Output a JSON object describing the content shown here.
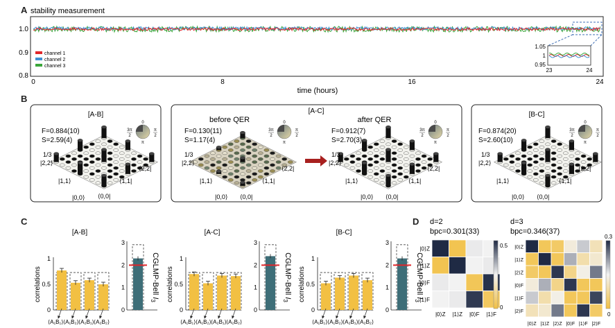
{
  "figure": {
    "panel_a": {
      "letter": "A",
      "title": "stability measurement",
      "ylabel_ticks": [
        "1.0",
        "0.9",
        "0.8"
      ],
      "xticks": [
        "0",
        "8",
        "16",
        "24"
      ],
      "xlabel": "time (hours)",
      "legend": [
        "channel 1",
        "channel 2",
        "channel 3"
      ],
      "inset": {
        "yticks": [
          "1.05",
          "1",
          "0.95"
        ],
        "xticks": [
          "23",
          "24"
        ]
      },
      "colors": {
        "channel1": "#e0262a",
        "channel2": "#3f8fd2",
        "channel3": "#3aa63a"
      }
    },
    "panel_b": {
      "letter": "B",
      "ab": {
        "title": "[A-B]",
        "fidelity": "F=0.884(10)",
        "s_value": "S=2.59(4)",
        "axis": {
          "ytop": "1/3",
          "left22": "|2,2⟩",
          "left11": "|1,1⟩",
          "left00": "|0,0⟩",
          "bottom00": "⟨0,0|",
          "bottom11": "⟨1,1|",
          "bottom22": "⟨2,2|"
        }
      },
      "ac": {
        "title": "[A-C]",
        "before_title": "before QER",
        "after_title": "after QER",
        "before_fidelity": "F=0.130(11)",
        "before_s": "S=1.17(4)",
        "after_fidelity": "F=0.912(7)",
        "after_s": "S=2.70(3)",
        "before_axis": {
          "ytop": "1/3",
          "left22": "|2,2⟩",
          "left11": "|1,1⟩",
          "left00": "|0,0⟩",
          "bottom00": "⟨0,0|",
          "bottom11": "⟨1,1|",
          "bottom22": "⟨2,2|"
        },
        "after_axis": {
          "ytop": "1/3",
          "left22": "|2,2⟩",
          "left11": "|1,1⟩",
          "left00": "|0,0⟩",
          "bottom00": "⟨0,0|",
          "bottom11": "⟨1,1|",
          "bottom22": "⟨2,2|"
        }
      },
      "bc": {
        "title": "[B-C]",
        "fidelity": "F=0.874(20)",
        "s_value": "S=2.60(10)",
        "axis": {
          "ytop": "1/3",
          "left22": "|2,2⟩",
          "left11": "|1,1⟩",
          "left00": "|0,0⟩",
          "bottom00": "⟨0,0|",
          "bottom11": "⟨1,1|",
          "bottom22": "⟨2,2|"
        }
      },
      "phase_wheel": {
        "top": "0",
        "left_num": "3",
        "left_pi": "π",
        "left_den": "2",
        "right_num": "π",
        "right_den": "2",
        "bottom": "π"
      }
    },
    "panel_c": {
      "letter": "C",
      "ylabel": "correlations",
      "bell_label": "CGLMP-Bell",
      "bell_symbol": "I",
      "bell_sub": "3",
      "yticks_left": [
        "1",
        "0.5",
        "0"
      ],
      "yticks_right": [
        "3",
        "2",
        "1",
        "0"
      ],
      "xlabels": [
        "⟨A₁B₁⟩",
        "⟨A₁B₂⟩",
        "⟨A₂B₁⟩",
        "⟨A₂B₂⟩"
      ],
      "groups": [
        {
          "title": "[A-B]",
          "values": [
            0.77,
            0.53,
            0.58,
            0.5
          ],
          "ideal": 0.73,
          "bell": 2.3
        },
        {
          "title": "[A-C]",
          "values": [
            0.7,
            0.52,
            0.67,
            0.66
          ],
          "ideal": 0.73,
          "bell": 2.4
        },
        {
          "title": "[B-C]",
          "values": [
            0.52,
            0.63,
            0.67,
            0.58
          ],
          "ideal": 0.73,
          "bell": 2.3
        }
      ],
      "bell_ideal": 2.91,
      "bell_bound": 2.0,
      "colors": {
        "bar": "#f2c043",
        "bell": "#3e6e78",
        "bound": "#e0262a"
      }
    },
    "panel_d": {
      "letter": "D",
      "d2": {
        "title": "d=2",
        "bpc": "bpc=0.301(33)",
        "rows": [
          "|0⟩Z",
          "|1⟩Z",
          "|0⟩F",
          "|1⟩F"
        ],
        "cols": [
          "|0⟩Z",
          "|1⟩Z",
          "|0⟩F",
          "|1⟩F"
        ],
        "colorbar": [
          "0.5",
          "0"
        ],
        "matrix": [
          [
            0.5,
            0.02,
            0.26,
            0.25
          ],
          [
            0.02,
            0.5,
            0.25,
            0.26
          ],
          [
            0.26,
            0.25,
            0.03,
            0.49
          ],
          [
            0.25,
            0.26,
            0.48,
            0.04
          ]
        ]
      },
      "d3": {
        "title": "d=3",
        "bpc": "bpc=0.346(37)",
        "rows": [
          "|0⟩Z",
          "|1⟩Z",
          "|2⟩Z",
          "|0⟩F",
          "|1⟩F",
          "|2⟩F"
        ],
        "cols": [
          "|0⟩Z",
          "|1⟩Z",
          "|2⟩Z",
          "|0⟩F",
          "|1⟩F",
          "|2⟩F"
        ],
        "colorbar": [
          "0.3",
          "0"
        ],
        "matrix": [
          [
            0.3,
            0.02,
            0.03,
            0.13,
            0.18,
            0.1
          ],
          [
            0.02,
            0.3,
            0.02,
            0.2,
            0.09,
            0.12
          ],
          [
            0.03,
            0.02,
            0.29,
            0.06,
            0.14,
            0.24
          ],
          [
            0.13,
            0.2,
            0.06,
            0.29,
            0.02,
            0.02
          ],
          [
            0.18,
            0.09,
            0.14,
            0.02,
            0.02,
            0.28
          ],
          [
            0.1,
            0.12,
            0.24,
            0.02,
            0.29,
            0.03
          ]
        ]
      }
    }
  }
}
